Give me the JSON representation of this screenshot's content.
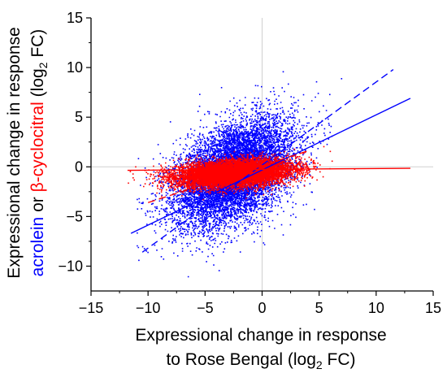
{
  "chart_data": {
    "type": "scatter",
    "title": "",
    "xlabel_lines": [
      "Expressional change in response",
      "to Rose Bengal (log"
    ],
    "xlabel_sub": "2",
    "xlabel_tail": " FC)",
    "ylabel": {
      "line1": "Expressional change in response",
      "part_blue": "acrolein",
      "part_or": " or ",
      "part_red": "β-cyclocitral",
      "part_log": " (log",
      "part_sub": "2",
      "part_tail": " FC)"
    },
    "xlim": [
      -15,
      15
    ],
    "ylim": [
      -12.5,
      15
    ],
    "x_ticks": [
      -15,
      -10,
      -5,
      0,
      5,
      10,
      15
    ],
    "y_ticks": [
      -10,
      -5,
      0,
      5,
      10,
      15
    ],
    "x_tick_labels": [
      "−15",
      "−10",
      "−5",
      "0",
      "5",
      "10",
      "15"
    ],
    "y_tick_labels": [
      "−10",
      "−5",
      "0",
      "5",
      "10",
      "15"
    ],
    "zero_gridlines": true,
    "series": [
      {
        "name": "acrolein",
        "color": "#0000ff",
        "marker": "dot",
        "cloud": {
          "x_mean": -2.5,
          "x_sd": 2.6,
          "y_sd_resid": 2.4,
          "slope": 0.45,
          "intercept": 0.6,
          "x_range": [
            -11,
            13
          ],
          "n_points": 9000
        },
        "fit_lines": [
          {
            "style": "solid",
            "x": [
              -11.5,
              13
            ],
            "y": [
              -6.7,
              6.9
            ]
          },
          {
            "style": "dashed",
            "x": [
              -10.5,
              11.5
            ],
            "y": [
              -8.6,
              9.8
            ]
          }
        ]
      },
      {
        "name": "β-cyclocitral",
        "color": "#ff0000",
        "marker": "dot",
        "cloud": {
          "x_mean": -2.5,
          "x_sd": 2.5,
          "y_sd_resid": 0.65,
          "slope": 0.08,
          "intercept": -0.4,
          "x_range": [
            -12,
            13
          ],
          "n_points": 9000
        },
        "fit_lines": [
          {
            "style": "solid",
            "x": [
              -11.8,
              13
            ],
            "y": [
              -0.35,
              -0.15
            ]
          },
          {
            "style": "dashed",
            "x": [
              -10,
              4
            ],
            "y": [
              -3.6,
              1.6
            ]
          }
        ]
      }
    ]
  }
}
